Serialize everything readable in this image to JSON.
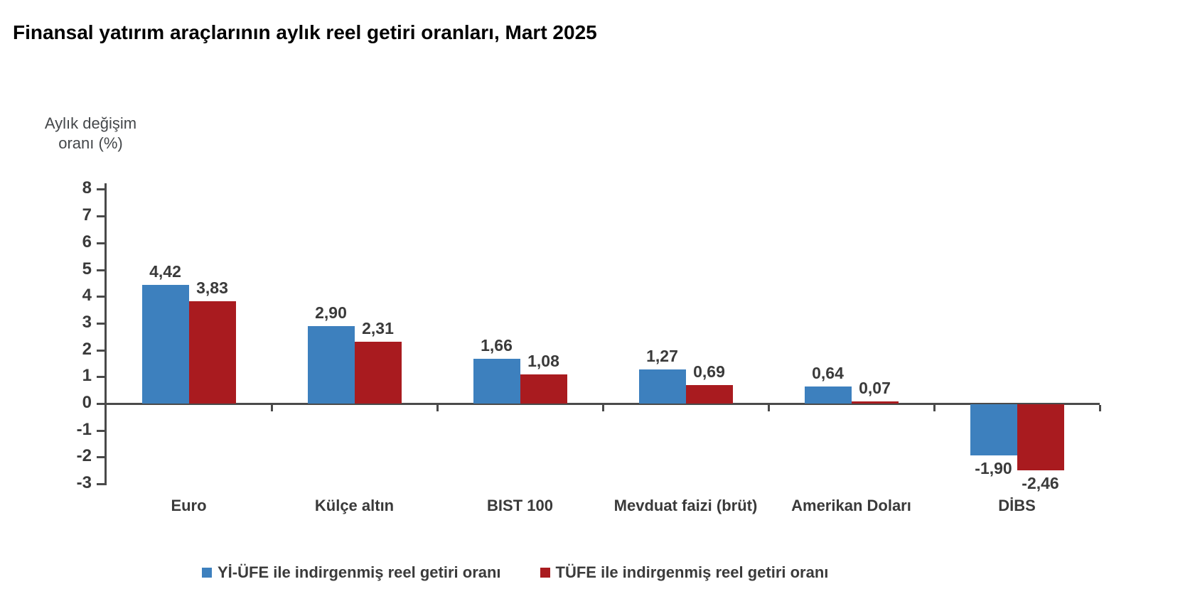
{
  "title": "Finansal yatırım araçlarının aylık reel getiri oranları, Mart 2025",
  "chart_data": {
    "type": "bar",
    "title": "Finansal yatırım araçlarının aylık reel getiri oranları, Mart 2025",
    "y_axis_title": {
      "line1": "Aylık değişim",
      "line2": "oranı (%)"
    },
    "categories": [
      "Euro",
      "Külçe altın",
      "BIST 100",
      "Mevduat faizi (brüt)",
      "Amerikan Doları",
      "DİBS"
    ],
    "series": [
      {
        "name": "Yİ-ÜFE ile indirgenmiş reel getiri oranı",
        "color": "#3d80be",
        "values": [
          4.42,
          2.9,
          1.66,
          1.27,
          0.64,
          -1.9
        ],
        "value_labels": [
          "4,42",
          "2,90",
          "1,66",
          "1,27",
          "0,64",
          "-1,90"
        ]
      },
      {
        "name": "TÜFE ile indirgenmiş reel getiri oranı",
        "color": "#a91b1f",
        "values": [
          3.83,
          2.31,
          1.08,
          0.69,
          0.07,
          -2.46
        ],
        "value_labels": [
          "3,83",
          "2,31",
          "1,08",
          "0,69",
          "0,07",
          "-2,46"
        ]
      }
    ],
    "ylim": [
      -3,
      8
    ],
    "y_ticks": [
      8,
      7,
      6,
      5,
      4,
      3,
      2,
      1,
      0,
      -1,
      -2,
      -3
    ],
    "grid": false,
    "legend_position": "bottom",
    "axis_color": "#4a4a4a",
    "text_color": "#3a3a3a"
  }
}
